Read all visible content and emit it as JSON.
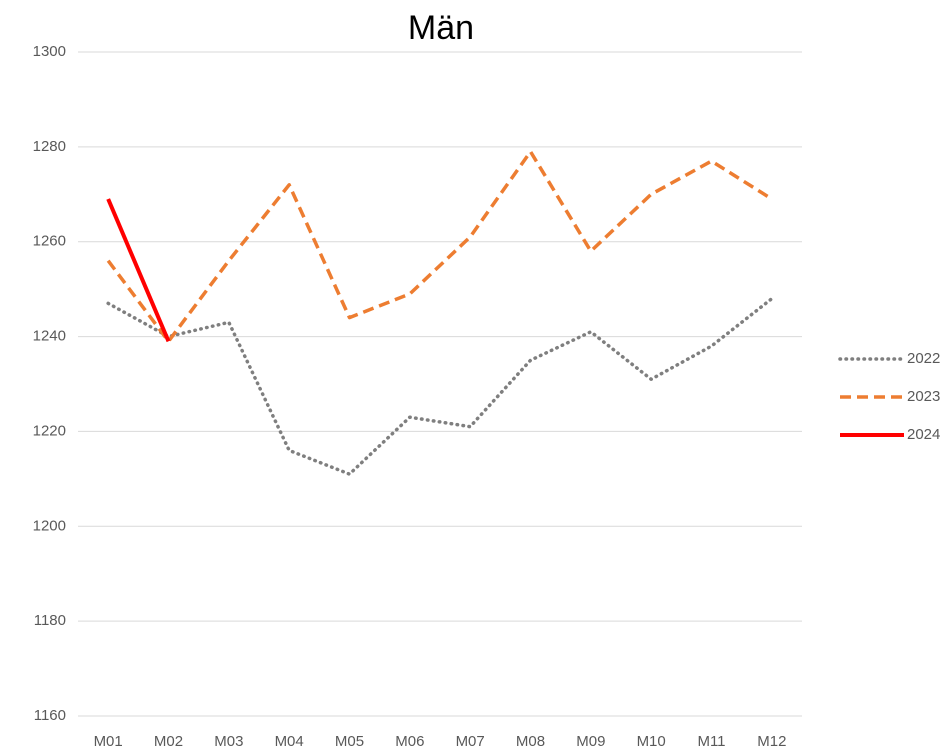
{
  "chart_data": {
    "type": "line",
    "title": "Män",
    "categories": [
      "M01",
      "M02",
      "M03",
      "M04",
      "M05",
      "M06",
      "M07",
      "M08",
      "M09",
      "M10",
      "M11",
      "M12"
    ],
    "series": [
      {
        "name": "2022",
        "color": "#7f7f7f",
        "style": "dotted",
        "values": [
          1247,
          1240,
          1243,
          1216,
          1211,
          1223,
          1221,
          1235,
          1241,
          1231,
          1238,
          1248
        ]
      },
      {
        "name": "2023",
        "color": "#ed7d31",
        "style": "dashed",
        "values": [
          1256,
          1239,
          1256,
          1272,
          1244,
          1249,
          1261,
          1279,
          1258,
          1270,
          1277,
          1269
        ]
      },
      {
        "name": "2024",
        "color": "#ff0000",
        "style": "solid",
        "values": [
          1269,
          1239,
          null,
          null,
          null,
          null,
          null,
          null,
          null,
          null,
          null,
          null
        ]
      }
    ],
    "ylim": [
      1160,
      1300
    ],
    "yticks": [
      1160,
      1180,
      1200,
      1220,
      1240,
      1260,
      1280,
      1300
    ],
    "grid": true,
    "legend": "right"
  }
}
